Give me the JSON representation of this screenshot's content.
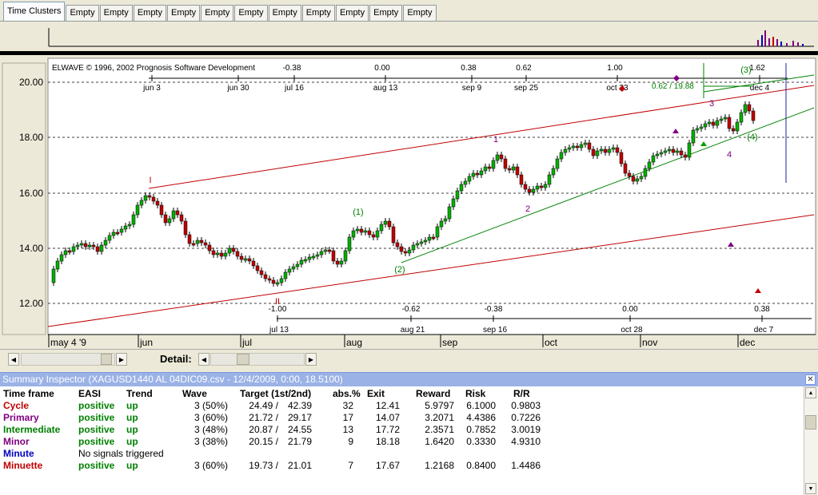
{
  "tabs": [
    "Time Clusters",
    "Empty",
    "Empty",
    "Empty",
    "Empty",
    "Empty",
    "Empty",
    "Empty",
    "Empty",
    "Empty",
    "Empty",
    "Empty"
  ],
  "chart": {
    "copyright": "ELWAVE © 1996, 2002 Prognosis Software Development",
    "price_axis": [
      "20.00",
      "18.00",
      "16.00",
      "14.00",
      "12.00"
    ],
    "top_ruler_ratios": [
      "-0.38",
      "0.00",
      "0.38",
      "0.62",
      "1.00",
      "1.62"
    ],
    "top_ruler_dates": [
      "jun 3",
      "jun 30",
      "jul 16",
      "aug 13",
      "sep 9",
      "sep 25",
      "oct 23",
      "dec 4"
    ],
    "bottom_ruler_ratios": [
      "-1.00",
      "-0.62",
      "-0.38",
      "0.00",
      "0.38"
    ],
    "bottom_ruler_dates": [
      "jul 13",
      "aug 21",
      "sep 16",
      "oct 28",
      "dec 7"
    ],
    "month_labels": [
      "may 4 '9",
      "jun",
      "jul",
      "aug",
      "sep",
      "oct",
      "nov",
      "dec"
    ],
    "target_label": "0.62 / 19.88",
    "wave_labels": [
      "I",
      "II",
      "1",
      "2",
      "3",
      "4",
      "(1)",
      "(2)",
      "(3)",
      "(4)"
    ]
  },
  "detail_label": "Detail:",
  "summary": {
    "title": "Summary Inspector (XAGUSD1440 AL 04DIC09.csv - 12/4/2009, 0:00, 18.5100)",
    "headers": [
      "Time frame",
      "EASI",
      "Trend",
      "Wave",
      "Target (1st/2nd)",
      "abs.%",
      "Exit",
      "Reward",
      "Risk",
      "R/R"
    ],
    "rows": [
      {
        "tf": "Cycle",
        "color": "#c00000",
        "easi": "positive",
        "trend": "up",
        "wave": "3 (50%)",
        "t1": "24.49 /",
        "t2": "42.39",
        "abs": "32",
        "exit": "12.41",
        "reward": "5.9797",
        "risk": "6.1000",
        "rr": "0.9803"
      },
      {
        "tf": "Primary",
        "color": "#800080",
        "easi": "positive",
        "trend": "up",
        "wave": "3 (60%)",
        "t1": "21.72 /",
        "t2": "29.17",
        "abs": "17",
        "exit": "14.07",
        "reward": "3.2071",
        "risk": "4.4386",
        "rr": "0.7226"
      },
      {
        "tf": "Intermediate",
        "color": "#008000",
        "easi": "positive",
        "trend": "up",
        "wave": "3 (48%)",
        "t1": "20.87 /",
        "t2": "24.55",
        "abs": "13",
        "exit": "17.72",
        "reward": "2.3571",
        "risk": "0.7852",
        "rr": "3.0019"
      },
      {
        "tf": "Minor",
        "color": "#800080",
        "easi": "positive",
        "trend": "up",
        "wave": "3 (38%)",
        "t1": "20.15 /",
        "t2": "21.79",
        "abs": "9",
        "exit": "18.18",
        "reward": "1.6420",
        "risk": "0.3330",
        "rr": "4.9310"
      },
      {
        "tf": "Minute",
        "color": "#0000c0",
        "easi": "No signals triggered",
        "trend": "",
        "wave": "",
        "t1": "",
        "t2": "",
        "abs": "",
        "exit": "",
        "reward": "",
        "risk": "",
        "rr": ""
      },
      {
        "tf": "Minuette",
        "color": "#c00000",
        "easi": "positive",
        "trend": "up",
        "wave": "3 (60%)",
        "t1": "19.73 /",
        "t2": "21.01",
        "abs": "7",
        "exit": "17.67",
        "reward": "1.2168",
        "risk": "0.8400",
        "rr": "1.4486"
      }
    ]
  }
}
